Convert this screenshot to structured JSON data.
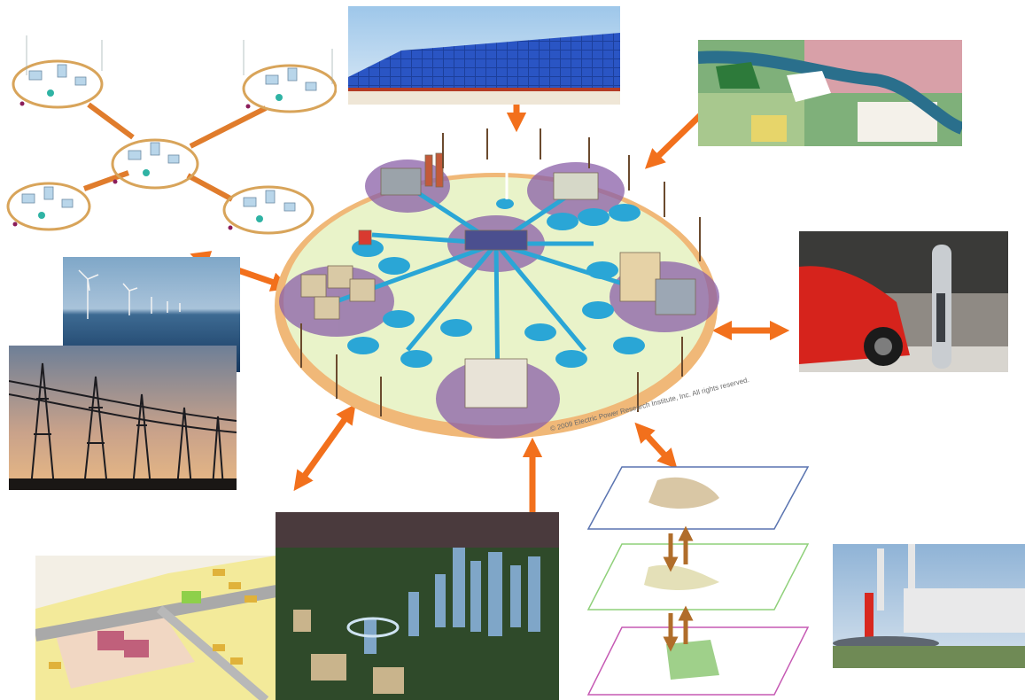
{
  "title": "",
  "credit": "© 2009 Electric Power Research Institute, Inc. All rights reserved.",
  "colors": {
    "arrow": "#f2701c",
    "arrow_brown": "#b06d2a",
    "ring_outer": "#f0b878",
    "ring_inner": "#e9f3c9",
    "hub": "#8a5fa8",
    "node": "#2aa6d6"
  },
  "nodes": [
    {
      "id": "center",
      "name": "smart-grid-illustration"
    },
    {
      "id": "microgrid",
      "name": "microgrid-network-diagram"
    },
    {
      "id": "solar",
      "name": "solar-roof-photo"
    },
    {
      "id": "landuse",
      "name": "land-use-map"
    },
    {
      "id": "ev",
      "name": "ev-charging-photo"
    },
    {
      "id": "wind",
      "name": "offshore-wind-photo"
    },
    {
      "id": "pylons",
      "name": "transmission-towers-photo"
    },
    {
      "id": "zoning",
      "name": "zoning-plan-map"
    },
    {
      "id": "city",
      "name": "city-model-photo"
    },
    {
      "id": "gis",
      "name": "gis-layer-stack"
    },
    {
      "id": "plant",
      "name": "power-plant-photo"
    }
  ],
  "connections": [
    {
      "from": "center",
      "to": "solar"
    },
    {
      "from": "center",
      "to": "landuse"
    },
    {
      "from": "center",
      "to": "ev"
    },
    {
      "from": "center",
      "to": "wind"
    },
    {
      "from": "center",
      "to": "zoning"
    },
    {
      "from": "center",
      "to": "city"
    },
    {
      "from": "center",
      "to": "gis"
    }
  ]
}
